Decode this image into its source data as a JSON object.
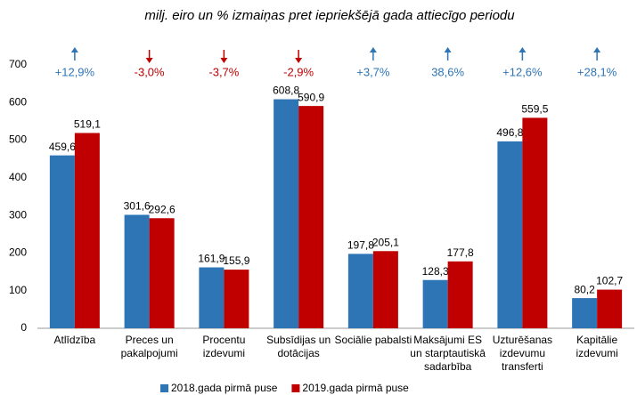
{
  "chart_data": {
    "type": "bar",
    "subtitle": "milj. eiro un % izmaiņas pret iepriekšējā gada attiecīgo periodu",
    "categories": [
      "Atlīdzība",
      "Preces un\npakalpojumi",
      "Procentu\nizdevumi",
      "Subsīdijas un\ndotācijas",
      "Sociālie pabalsti",
      "Maksājumi ES\nun starptautiskā\nsadarbība",
      "Uzturēšanas\nizdevumu\ntransferti",
      "Kapitālie\nizdevumi"
    ],
    "series": [
      {
        "name": "2018.gada pirmā puse",
        "color": "#2e75b6",
        "values": [
          459.6,
          301.6,
          161.9,
          608.8,
          197.8,
          128.3,
          496.8,
          80.2
        ],
        "value_labels": [
          "459,6",
          "301,6",
          "161,9",
          "608,8",
          "197,8",
          "128,3",
          "496,8",
          "80,2"
        ]
      },
      {
        "name": "2019.gada pirmā puse",
        "color": "#c00000",
        "values": [
          519.1,
          292.6,
          155.9,
          590.9,
          205.1,
          177.8,
          559.5,
          102.7
        ],
        "value_labels": [
          "519,1",
          "292,6",
          "155,9",
          "590,9",
          "205,1",
          "177,8",
          "559,5",
          "102,7"
        ]
      }
    ],
    "annotations": [
      {
        "text": "+12,9%",
        "direction": "up",
        "color": "#2e75b6"
      },
      {
        "text": "-3,0%",
        "direction": "down",
        "color": "#c00000"
      },
      {
        "text": "-3,7%",
        "direction": "down",
        "color": "#c00000"
      },
      {
        "text": "-2,9%",
        "direction": "down",
        "color": "#c00000"
      },
      {
        "text": "+3,7%",
        "direction": "up",
        "color": "#2e75b6"
      },
      {
        "text": "38,6%",
        "direction": "up",
        "color": "#2e75b6"
      },
      {
        "text": "+12,6%",
        "direction": "up",
        "color": "#2e75b6"
      },
      {
        "text": "+28,1%",
        "direction": "up",
        "color": "#2e75b6"
      }
    ],
    "ylim": [
      0,
      700
    ],
    "yticks": [
      0,
      100,
      200,
      300,
      400,
      500,
      600,
      700
    ],
    "grid": false,
    "legend": "bottom"
  }
}
